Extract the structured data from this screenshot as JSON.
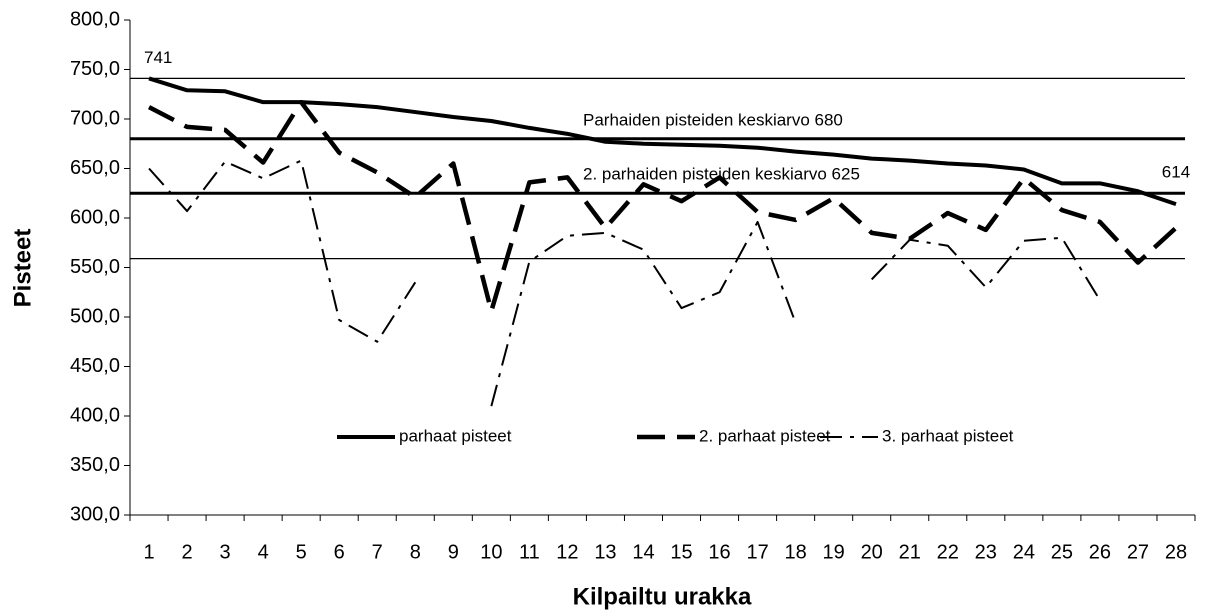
{
  "chart_data": {
    "type": "line",
    "xlabel": "Kilpailtu urakka",
    "ylabel": "Pisteet",
    "categories": [
      "1",
      "2",
      "3",
      "4",
      "5",
      "6",
      "7",
      "8",
      "9",
      "10",
      "11",
      "12",
      "13",
      "14",
      "15",
      "16",
      "17",
      "18",
      "19",
      "20",
      "21",
      "22",
      "23",
      "24",
      "25",
      "26",
      "27",
      "28"
    ],
    "series": [
      {
        "name": "parhaat pisteet",
        "color": "#000000",
        "values": [
          741,
          729,
          728,
          717,
          717,
          715,
          712,
          707,
          702,
          698,
          691,
          685,
          677,
          675,
          674,
          673,
          671,
          667,
          664,
          660,
          658,
          655,
          653,
          649,
          635,
          635,
          627,
          614
        ]
      },
      {
        "name": "2. parhaat pisteet",
        "color": "#000000",
        "values": [
          712,
          692,
          689,
          656,
          717,
          666,
          646,
          621,
          655,
          506,
          636,
          641,
          590,
          634,
          617,
          641,
          606,
          598,
          620,
          585,
          579,
          605,
          588,
          640,
          608,
          596,
          555,
          590
        ]
      },
      {
        "name": "3. parhaat pisteet",
        "color": "#000000",
        "values": [
          650,
          607,
          657,
          640,
          658,
          497,
          475,
          535,
          null,
          410,
          556,
          582,
          585,
          568,
          509,
          525,
          596,
          494,
          null,
          538,
          578,
          572,
          530,
          577,
          580,
          517,
          null,
          null
        ]
      }
    ],
    "reference_lines": [
      {
        "value": 741,
        "style": "thin"
      },
      {
        "value": 680,
        "style": "thick",
        "label": "Parhaiden pisteiden keskiarvo 680"
      },
      {
        "value": 625,
        "style": "thick",
        "label": "2. parhaiden pisteiden keskiarvo 625"
      },
      {
        "value": 559,
        "style": "thin"
      }
    ],
    "ylim": [
      300,
      800
    ],
    "yticks": [
      {
        "value": 300,
        "label": "300,0"
      },
      {
        "value": 350,
        "label": "350,0"
      },
      {
        "value": 400,
        "label": "400,0"
      },
      {
        "value": 450,
        "label": "450,0"
      },
      {
        "value": 500,
        "label": "500,0"
      },
      {
        "value": 550,
        "label": "550,0"
      },
      {
        "value": 600,
        "label": "600,0"
      },
      {
        "value": 650,
        "label": "650,0"
      },
      {
        "value": 700,
        "label": "700,0"
      },
      {
        "value": 750,
        "label": "750,0"
      },
      {
        "value": 800,
        "label": "800,0"
      }
    ],
    "grid": false
  }
}
